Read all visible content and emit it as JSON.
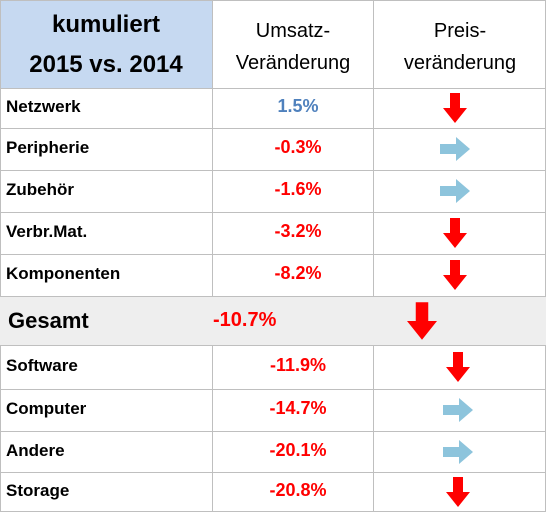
{
  "header": {
    "title_line1": "kumuliert",
    "title_line2": "2015 vs. 2014",
    "col_umsatz_line1": "Umsatz-",
    "col_umsatz_line2": "Veränderung",
    "col_preis_line1": "Preis-",
    "col_preis_line2": "veränderung"
  },
  "colors": {
    "header_bg": "#c6d9f1",
    "positive": "#4f81bd",
    "negative": "#ff0000",
    "arrow_down": "#ff0000",
    "arrow_right": "#8dc4dc",
    "gesamt_bg": "#eeeeee"
  },
  "chart_data": {
    "type": "table",
    "columns": [
      "kumuliert 2015 vs. 2014",
      "Umsatz-Veränderung",
      "Preis-veränderung"
    ],
    "rows": [
      {
        "category": "Netzwerk",
        "umsatz": "1.5%",
        "umsatz_value": 1.5,
        "preis": "down"
      },
      {
        "category": "Peripherie",
        "umsatz": "-0.3%",
        "umsatz_value": -0.3,
        "preis": "right"
      },
      {
        "category": "Zubehör",
        "umsatz": "-1.6%",
        "umsatz_value": -1.6,
        "preis": "right"
      },
      {
        "category": "Verbr.Mat.",
        "umsatz": "-3.2%",
        "umsatz_value": -3.2,
        "preis": "down"
      },
      {
        "category": "Komponenten",
        "umsatz": "-8.2%",
        "umsatz_value": -8.2,
        "preis": "down"
      },
      {
        "category": "Gesamt",
        "umsatz": "-10.7%",
        "umsatz_value": -10.7,
        "preis": "down",
        "total": true
      },
      {
        "category": "Software",
        "umsatz": "-11.9%",
        "umsatz_value": -11.9,
        "preis": "down"
      },
      {
        "category": "Computer",
        "umsatz": "-14.7%",
        "umsatz_value": -14.7,
        "preis": "right"
      },
      {
        "category": "Andere",
        "umsatz": "-20.1%",
        "umsatz_value": -20.1,
        "preis": "right"
      },
      {
        "category": "Storage",
        "umsatz": "-20.8%",
        "umsatz_value": -20.8,
        "preis": "down"
      }
    ]
  }
}
